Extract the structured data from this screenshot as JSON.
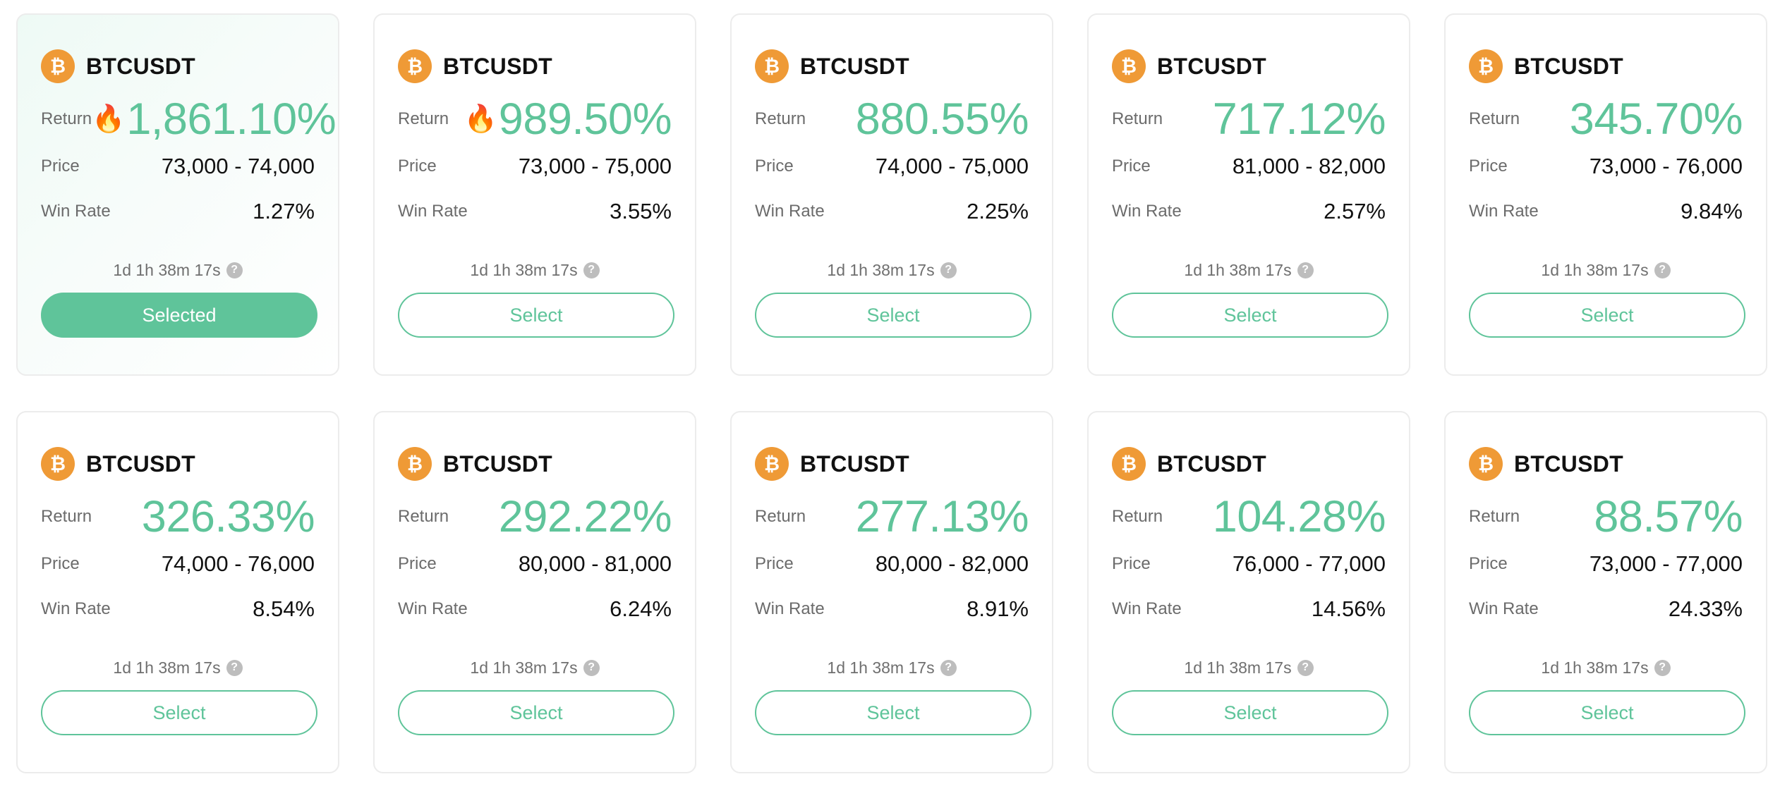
{
  "colors": {
    "accent": "#5fc49a",
    "coin": "#ef9a36",
    "border": "#ececec"
  },
  "cards": [
    {
      "pair": "BTCUSDT",
      "return_label": "Return",
      "hot": true,
      "return": "1,861.10%",
      "price_label": "Price",
      "price": "73,000 - 74,000",
      "win_label": "Win Rate",
      "win_rate": "1.27%",
      "timer": "1d 1h 38m 17s",
      "button": "Selected",
      "selected": true
    },
    {
      "pair": "BTCUSDT",
      "return_label": "Return",
      "hot": true,
      "return": "989.50%",
      "price_label": "Price",
      "price": "73,000 - 75,000",
      "win_label": "Win Rate",
      "win_rate": "3.55%",
      "timer": "1d 1h 38m 17s",
      "button": "Select",
      "selected": false
    },
    {
      "pair": "BTCUSDT",
      "return_label": "Return",
      "hot": false,
      "return": "880.55%",
      "price_label": "Price",
      "price": "74,000 - 75,000",
      "win_label": "Win Rate",
      "win_rate": "2.25%",
      "timer": "1d 1h 38m 17s",
      "button": "Select",
      "selected": false
    },
    {
      "pair": "BTCUSDT",
      "return_label": "Return",
      "hot": false,
      "return": "717.12%",
      "price_label": "Price",
      "price": "81,000 - 82,000",
      "win_label": "Win Rate",
      "win_rate": "2.57%",
      "timer": "1d 1h 38m 17s",
      "button": "Select",
      "selected": false
    },
    {
      "pair": "BTCUSDT",
      "return_label": "Return",
      "hot": false,
      "return": "345.70%",
      "price_label": "Price",
      "price": "73,000 - 76,000",
      "win_label": "Win Rate",
      "win_rate": "9.84%",
      "timer": "1d 1h 38m 17s",
      "button": "Select",
      "selected": false
    },
    {
      "pair": "BTCUSDT",
      "return_label": "Return",
      "hot": false,
      "return": "326.33%",
      "price_label": "Price",
      "price": "74,000 - 76,000",
      "win_label": "Win Rate",
      "win_rate": "8.54%",
      "timer": "1d 1h 38m 17s",
      "button": "Select",
      "selected": false
    },
    {
      "pair": "BTCUSDT",
      "return_label": "Return",
      "hot": false,
      "return": "292.22%",
      "price_label": "Price",
      "price": "80,000 - 81,000",
      "win_label": "Win Rate",
      "win_rate": "6.24%",
      "timer": "1d 1h 38m 17s",
      "button": "Select",
      "selected": false
    },
    {
      "pair": "BTCUSDT",
      "return_label": "Return",
      "hot": false,
      "return": "277.13%",
      "price_label": "Price",
      "price": "80,000 - 82,000",
      "win_label": "Win Rate",
      "win_rate": "8.91%",
      "timer": "1d 1h 38m 17s",
      "button": "Select",
      "selected": false
    },
    {
      "pair": "BTCUSDT",
      "return_label": "Return",
      "hot": false,
      "return": "104.28%",
      "price_label": "Price",
      "price": "76,000 - 77,000",
      "win_label": "Win Rate",
      "win_rate": "14.56%",
      "timer": "1d 1h 38m 17s",
      "button": "Select",
      "selected": false
    },
    {
      "pair": "BTCUSDT",
      "return_label": "Return",
      "hot": false,
      "return": "88.57%",
      "price_label": "Price",
      "price": "73,000 - 77,000",
      "win_label": "Win Rate",
      "win_rate": "24.33%",
      "timer": "1d 1h 38m 17s",
      "button": "Select",
      "selected": false
    }
  ]
}
